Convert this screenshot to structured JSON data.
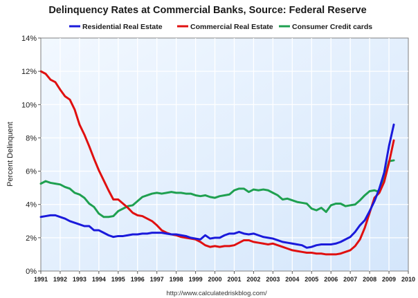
{
  "chart_data": {
    "type": "line",
    "title": "Delinquency Rates at Commercial Banks, Source: Federal Reserve",
    "ylabel": "Percent Delinquent",
    "xlabel": "",
    "source": "http://www.calculatedriskblog.com/",
    "xlim": [
      1991,
      2010
    ],
    "ylim": [
      0,
      14
    ],
    "grid": true,
    "legend_position": "top",
    "x_ticks": [
      "1991",
      "1992",
      "1993",
      "1994",
      "1995",
      "1996",
      "1997",
      "1998",
      "1999",
      "2000",
      "2001",
      "2002",
      "2003",
      "2004",
      "2005",
      "2006",
      "2007",
      "2008",
      "2009",
      "2010"
    ],
    "y_ticks": [
      "0%",
      "2%",
      "4%",
      "6%",
      "8%",
      "10%",
      "12%",
      "14%"
    ],
    "x": [
      1991.0,
      1991.25,
      1991.5,
      1991.75,
      1992.0,
      1992.25,
      1992.5,
      1992.75,
      1993.0,
      1993.25,
      1993.5,
      1993.75,
      1994.0,
      1994.25,
      1994.5,
      1994.75,
      1995.0,
      1995.25,
      1995.5,
      1995.75,
      1996.0,
      1996.25,
      1996.5,
      1996.75,
      1997.0,
      1997.25,
      1997.5,
      1997.75,
      1998.0,
      1998.25,
      1998.5,
      1998.75,
      1999.0,
      1999.25,
      1999.5,
      1999.75,
      2000.0,
      2000.25,
      2000.5,
      2000.75,
      2001.0,
      2001.25,
      2001.5,
      2001.75,
      2002.0,
      2002.25,
      2002.5,
      2002.75,
      2003.0,
      2003.25,
      2003.5,
      2003.75,
      2004.0,
      2004.25,
      2004.5,
      2004.75,
      2005.0,
      2005.25,
      2005.5,
      2005.75,
      2006.0,
      2006.25,
      2006.5,
      2006.75,
      2007.0,
      2007.25,
      2007.5,
      2007.75,
      2008.0,
      2008.25,
      2008.5,
      2008.75,
      2009.0,
      2009.25
    ],
    "series": [
      {
        "name": "Residential Real Estate",
        "color": "#1a1adb",
        "values": [
          3.25,
          3.3,
          3.35,
          3.35,
          3.25,
          3.15,
          3.0,
          2.9,
          2.8,
          2.7,
          2.7,
          2.45,
          2.45,
          2.3,
          2.15,
          2.05,
          2.1,
          2.1,
          2.15,
          2.2,
          2.2,
          2.25,
          2.25,
          2.3,
          2.3,
          2.3,
          2.25,
          2.2,
          2.2,
          2.15,
          2.1,
          2.0,
          1.95,
          1.9,
          2.15,
          1.95,
          2.0,
          2.0,
          2.15,
          2.25,
          2.25,
          2.35,
          2.25,
          2.2,
          2.25,
          2.15,
          2.05,
          2.0,
          1.95,
          1.85,
          1.75,
          1.7,
          1.65,
          1.6,
          1.55,
          1.4,
          1.45,
          1.55,
          1.6,
          1.6,
          1.6,
          1.65,
          1.75,
          1.9,
          2.05,
          2.35,
          2.75,
          3.05,
          3.6,
          4.2,
          4.95,
          5.9,
          7.5,
          8.8
        ]
      },
      {
        "name": "Commercial Real Estate",
        "color": "#e01010",
        "values": [
          12.0,
          11.85,
          11.5,
          11.35,
          10.9,
          10.5,
          10.3,
          9.7,
          8.8,
          8.2,
          7.5,
          6.75,
          6.05,
          5.45,
          4.85,
          4.3,
          4.3,
          4.05,
          3.8,
          3.5,
          3.35,
          3.3,
          3.15,
          3.0,
          2.75,
          2.45,
          2.3,
          2.2,
          2.15,
          2.05,
          2.0,
          1.95,
          1.9,
          1.75,
          1.55,
          1.45,
          1.5,
          1.45,
          1.5,
          1.5,
          1.55,
          1.7,
          1.85,
          1.85,
          1.75,
          1.7,
          1.65,
          1.6,
          1.65,
          1.55,
          1.45,
          1.35,
          1.25,
          1.2,
          1.15,
          1.1,
          1.1,
          1.05,
          1.05,
          1.0,
          1.0,
          1.0,
          1.05,
          1.15,
          1.25,
          1.5,
          1.9,
          2.6,
          3.5,
          4.4,
          4.7,
          5.35,
          6.5,
          7.85
        ]
      },
      {
        "name": "Consumer Credit cards",
        "color": "#1fa050",
        "values": [
          5.25,
          5.4,
          5.3,
          5.25,
          5.2,
          5.05,
          4.95,
          4.7,
          4.6,
          4.4,
          4.05,
          3.85,
          3.45,
          3.25,
          3.25,
          3.3,
          3.6,
          3.75,
          3.9,
          3.95,
          4.2,
          4.45,
          4.55,
          4.65,
          4.7,
          4.65,
          4.7,
          4.75,
          4.7,
          4.7,
          4.65,
          4.65,
          4.55,
          4.5,
          4.55,
          4.45,
          4.4,
          4.5,
          4.55,
          4.6,
          4.85,
          4.95,
          4.95,
          4.75,
          4.9,
          4.85,
          4.9,
          4.85,
          4.7,
          4.55,
          4.3,
          4.35,
          4.25,
          4.15,
          4.1,
          4.05,
          3.75,
          3.65,
          3.8,
          3.55,
          3.95,
          4.05,
          4.05,
          3.9,
          3.95,
          4.0,
          4.25,
          4.55,
          4.8,
          4.85,
          4.75,
          5.5,
          6.6,
          6.65
        ]
      }
    ]
  }
}
